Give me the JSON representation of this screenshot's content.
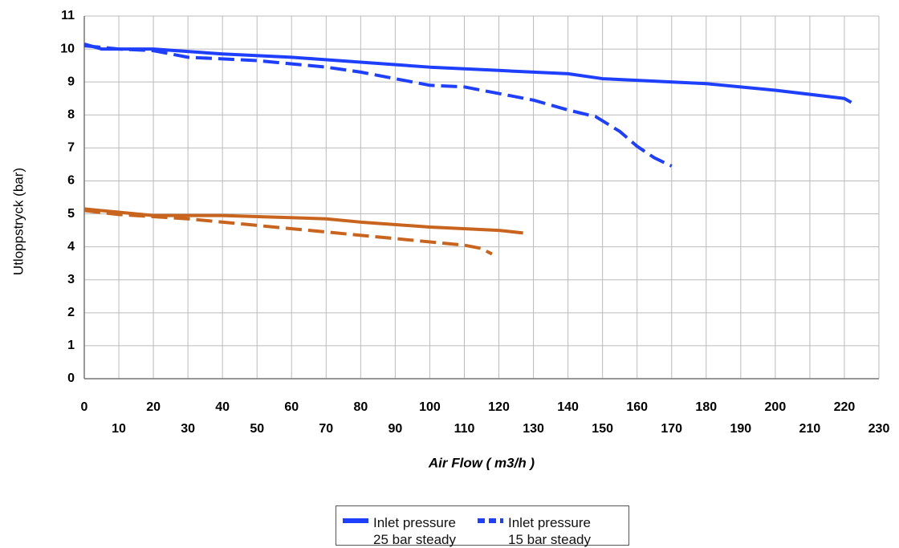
{
  "chart_data": {
    "type": "line",
    "xlabel": "Air Flow ( m3/h )",
    "ylabel": "Utloppstryck (bar)",
    "xlim": [
      0,
      230
    ],
    "ylim": [
      0,
      11
    ],
    "xticks": [
      0,
      10,
      20,
      30,
      40,
      50,
      60,
      70,
      80,
      90,
      100,
      110,
      120,
      130,
      140,
      150,
      160,
      170,
      180,
      190,
      200,
      210,
      220,
      230
    ],
    "yticks": [
      0,
      1,
      2,
      3,
      4,
      5,
      6,
      7,
      8,
      9,
      10,
      11
    ],
    "grid": true,
    "series": [
      {
        "name": "Inlet pressure 25 bar steady",
        "color": "#1f3fff",
        "dashed": false,
        "x": [
          0,
          5,
          20,
          40,
          60,
          80,
          100,
          120,
          140,
          150,
          160,
          180,
          200,
          220,
          222
        ],
        "values": [
          10.15,
          10.0,
          10.0,
          9.85,
          9.75,
          9.6,
          9.45,
          9.35,
          9.25,
          9.1,
          9.05,
          8.95,
          8.75,
          8.5,
          8.38
        ]
      },
      {
        "name": "Inlet pressure 15 bar steady",
        "color": "#1f3fff",
        "dashed": true,
        "x": [
          0,
          10,
          20,
          30,
          50,
          70,
          80,
          90,
          100,
          110,
          120,
          130,
          140,
          148,
          155,
          160,
          165,
          170
        ],
        "values": [
          10.1,
          10.0,
          9.95,
          9.75,
          9.65,
          9.45,
          9.3,
          9.1,
          8.9,
          8.85,
          8.65,
          8.45,
          8.15,
          7.95,
          7.5,
          7.05,
          6.7,
          6.45
        ]
      },
      {
        "color": "#c8641e",
        "dashed": false,
        "x": [
          0,
          20,
          40,
          55,
          70,
          80,
          100,
          120,
          127
        ],
        "values": [
          5.15,
          4.95,
          4.95,
          4.9,
          4.85,
          4.75,
          4.6,
          4.5,
          4.42
        ]
      },
      {
        "color": "#c8641e",
        "dashed": true,
        "x": [
          0,
          10,
          30,
          50,
          70,
          90,
          110,
          115,
          118
        ],
        "values": [
          5.1,
          4.98,
          4.85,
          4.65,
          4.45,
          4.25,
          4.05,
          3.95,
          3.78
        ]
      }
    ]
  }
}
